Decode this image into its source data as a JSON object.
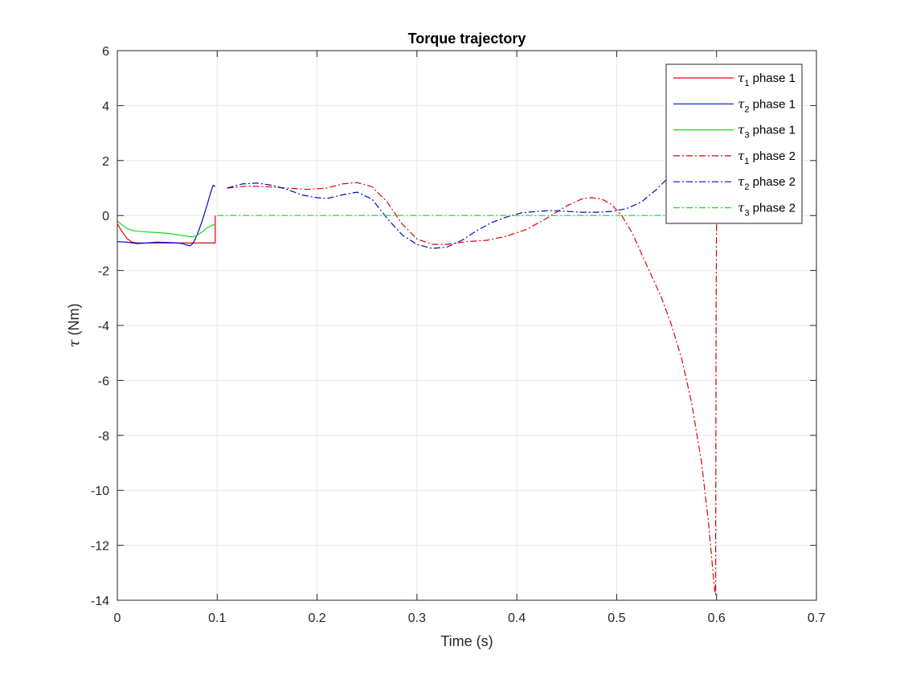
{
  "chart_data": {
    "type": "line",
    "title": "Torque trajectory",
    "xlabel": "Time (s)",
    "ylabel_symbol": "τ",
    "ylabel_unit": " (Nm)",
    "xlim": [
      0,
      0.7
    ],
    "ylim": [
      -14,
      6
    ],
    "xticks": [
      0,
      0.1,
      0.2,
      0.3,
      0.4,
      0.5,
      0.6,
      0.7
    ],
    "xtick_labels": [
      "0",
      "0.1",
      "0.2",
      "0.3",
      "0.4",
      "0.5",
      "0.6",
      "0.7"
    ],
    "yticks": [
      -14,
      -12,
      -10,
      -8,
      -6,
      -4,
      -2,
      0,
      2,
      4,
      6
    ],
    "ytick_labels": [
      "-14",
      "-12",
      "-10",
      "-8",
      "-6",
      "-4",
      "-2",
      "0",
      "2",
      "4",
      "6"
    ],
    "grid": true,
    "legend_position": "top-right",
    "series": [
      {
        "symbol": "τ",
        "sub": "1",
        "suffix": " phase 1",
        "color": "#e0000b",
        "style": "solid",
        "points": [
          [
            0,
            -0.3
          ],
          [
            0.005,
            -0.6
          ],
          [
            0.01,
            -0.85
          ],
          [
            0.015,
            -0.97
          ],
          [
            0.02,
            -1.0
          ],
          [
            0.03,
            -1.0
          ],
          [
            0.05,
            -1.0
          ],
          [
            0.07,
            -1.0
          ],
          [
            0.08,
            -1.0
          ],
          [
            0.09,
            -1.0
          ],
          [
            0.098,
            -1.0
          ],
          [
            0.098,
            0.0
          ]
        ]
      },
      {
        "symbol": "τ",
        "sub": "2",
        "suffix": " phase 1",
        "color": "#0008c8",
        "style": "solid",
        "points": [
          [
            0,
            -0.95
          ],
          [
            0.01,
            -0.97
          ],
          [
            0.02,
            -1.02
          ],
          [
            0.03,
            -1.0
          ],
          [
            0.04,
            -0.97
          ],
          [
            0.05,
            -0.98
          ],
          [
            0.06,
            -1.0
          ],
          [
            0.065,
            -1.02
          ],
          [
            0.07,
            -1.08
          ],
          [
            0.073,
            -1.1
          ],
          [
            0.076,
            -1.0
          ],
          [
            0.08,
            -0.7
          ],
          [
            0.085,
            -0.2
          ],
          [
            0.09,
            0.4
          ],
          [
            0.094,
            0.9
          ],
          [
            0.096,
            1.1
          ],
          [
            0.098,
            1.05
          ]
        ]
      },
      {
        "symbol": "τ",
        "sub": "3",
        "suffix": " phase 1",
        "color": "#16d916",
        "style": "solid",
        "points": [
          [
            0,
            -0.2
          ],
          [
            0.005,
            -0.35
          ],
          [
            0.01,
            -0.48
          ],
          [
            0.015,
            -0.54
          ],
          [
            0.02,
            -0.57
          ],
          [
            0.03,
            -0.6
          ],
          [
            0.04,
            -0.62
          ],
          [
            0.05,
            -0.65
          ],
          [
            0.06,
            -0.7
          ],
          [
            0.07,
            -0.75
          ],
          [
            0.075,
            -0.78
          ],
          [
            0.08,
            -0.72
          ],
          [
            0.085,
            -0.6
          ],
          [
            0.09,
            -0.45
          ],
          [
            0.095,
            -0.35
          ],
          [
            0.098,
            -0.33
          ]
        ]
      },
      {
        "symbol": "τ",
        "sub": "1",
        "suffix": " phase 2",
        "color": "#e0000b",
        "style": "dashdot",
        "points": [
          [
            0.11,
            1.0
          ],
          [
            0.13,
            1.07
          ],
          [
            0.15,
            1.05
          ],
          [
            0.17,
            1.0
          ],
          [
            0.19,
            0.95
          ],
          [
            0.21,
            1.0
          ],
          [
            0.225,
            1.15
          ],
          [
            0.24,
            1.2
          ],
          [
            0.255,
            1.05
          ],
          [
            0.27,
            0.5
          ],
          [
            0.285,
            -0.3
          ],
          [
            0.3,
            -0.85
          ],
          [
            0.315,
            -1.05
          ],
          [
            0.33,
            -1.05
          ],
          [
            0.35,
            -0.95
          ],
          [
            0.37,
            -0.9
          ],
          [
            0.39,
            -0.75
          ],
          [
            0.41,
            -0.5
          ],
          [
            0.43,
            -0.1
          ],
          [
            0.45,
            0.35
          ],
          [
            0.465,
            0.6
          ],
          [
            0.475,
            0.65
          ],
          [
            0.485,
            0.6
          ],
          [
            0.495,
            0.4
          ],
          [
            0.505,
            0.0
          ],
          [
            0.515,
            -0.6
          ],
          [
            0.525,
            -1.4
          ],
          [
            0.535,
            -2.2
          ],
          [
            0.545,
            -3.0
          ],
          [
            0.555,
            -4.0
          ],
          [
            0.565,
            -5.2
          ],
          [
            0.575,
            -6.8
          ],
          [
            0.585,
            -9.0
          ],
          [
            0.592,
            -11.2
          ],
          [
            0.596,
            -12.8
          ],
          [
            0.598,
            -13.6
          ],
          [
            0.599,
            -13.8
          ],
          [
            0.599,
            -13.0
          ],
          [
            0.5995,
            -4.0
          ],
          [
            0.6,
            0.0
          ]
        ]
      },
      {
        "symbol": "τ",
        "sub": "2",
        "suffix": " phase 2",
        "color": "#0008c8",
        "style": "dashdot",
        "points": [
          [
            0.11,
            1.0
          ],
          [
            0.125,
            1.15
          ],
          [
            0.14,
            1.18
          ],
          [
            0.155,
            1.1
          ],
          [
            0.17,
            0.95
          ],
          [
            0.185,
            0.75
          ],
          [
            0.2,
            0.65
          ],
          [
            0.21,
            0.62
          ],
          [
            0.225,
            0.75
          ],
          [
            0.24,
            0.85
          ],
          [
            0.255,
            0.6
          ],
          [
            0.27,
            -0.1
          ],
          [
            0.285,
            -0.7
          ],
          [
            0.3,
            -1.05
          ],
          [
            0.315,
            -1.2
          ],
          [
            0.33,
            -1.15
          ],
          [
            0.345,
            -0.9
          ],
          [
            0.36,
            -0.55
          ],
          [
            0.375,
            -0.25
          ],
          [
            0.39,
            -0.05
          ],
          [
            0.405,
            0.1
          ],
          [
            0.42,
            0.15
          ],
          [
            0.435,
            0.18
          ],
          [
            0.45,
            0.15
          ],
          [
            0.465,
            0.12
          ],
          [
            0.48,
            0.12
          ],
          [
            0.495,
            0.15
          ],
          [
            0.51,
            0.25
          ],
          [
            0.525,
            0.5
          ],
          [
            0.54,
            0.95
          ],
          [
            0.555,
            1.5
          ],
          [
            0.565,
            1.95
          ]
        ]
      },
      {
        "symbol": "τ",
        "sub": "3",
        "suffix": " phase 2",
        "color": "#16d916",
        "style": "dashdot",
        "points": [
          [
            0.1,
            0.0
          ],
          [
            0.6,
            0.0
          ]
        ]
      }
    ]
  }
}
